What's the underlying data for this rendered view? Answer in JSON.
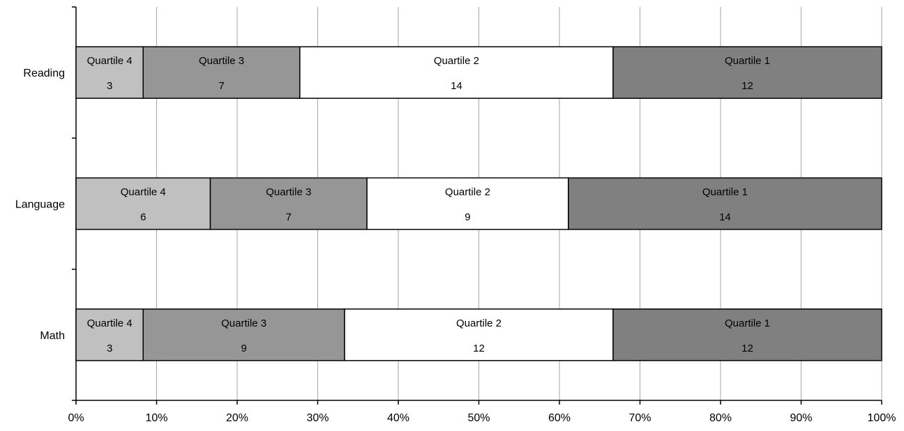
{
  "chart_data": {
    "type": "bar",
    "orientation": "horizontal",
    "stacking": "percent",
    "title": "",
    "xlabel": "",
    "ylabel": "",
    "xlim": [
      0,
      100
    ],
    "grid": true,
    "legend": "none",
    "x_ticks": [
      "0%",
      "10%",
      "20%",
      "30%",
      "40%",
      "50%",
      "60%",
      "70%",
      "80%",
      "90%",
      "100%"
    ],
    "categories": [
      "Reading",
      "Language",
      "Math"
    ],
    "series": [
      {
        "name": "Quartile 4",
        "color": "#c0c0c0",
        "values": [
          3,
          6,
          3
        ]
      },
      {
        "name": "Quartile 3",
        "color": "#969696",
        "values": [
          7,
          7,
          9
        ]
      },
      {
        "name": "Quartile 2",
        "color": "#ffffff",
        "values": [
          14,
          9,
          12
        ]
      },
      {
        "name": "Quartile 1",
        "color": "#808080",
        "values": [
          12,
          14,
          12
        ]
      }
    ]
  }
}
